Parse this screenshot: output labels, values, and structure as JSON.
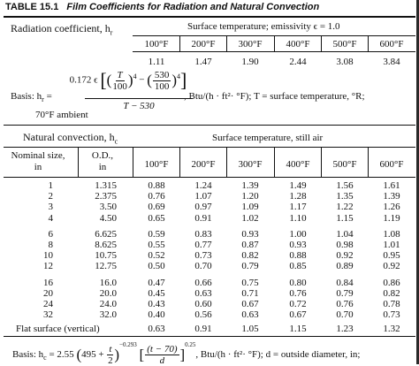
{
  "title": {
    "label": "TABLE 15.1",
    "text": "Film Coefficients for Radiation and Natural Convection"
  },
  "radiation": {
    "coef_label": "Radiation coefficient, h",
    "coef_sub": "r",
    "surface_header": "Surface temperature; emissivity ϵ = 1.0",
    "temps": [
      "100°F",
      "200°F",
      "300°F",
      "400°F",
      "500°F",
      "600°F"
    ],
    "values": [
      "1.11",
      "1.47",
      "1.90",
      "2.44",
      "3.08",
      "3.84"
    ],
    "basis_label": "Basis: h",
    "basis_sub": "r",
    "eq_coef": "0.172 ϵ",
    "eq_T": "T",
    "eq_100": "100",
    "eq_530": "530",
    "eq_pow": "4",
    "eq_denom": "T − 530",
    "basis_tail": ", Btu/(h · ft²· °F); T = surface temperature, °R;",
    "ambient": "70°F ambient"
  },
  "convection": {
    "label": "Natural convection, h",
    "label_sub": "c",
    "surface_header": "Surface temperature, still air",
    "col_nominal": [
      "Nominal size,",
      "in"
    ],
    "col_od": [
      "O.D.,",
      "in"
    ],
    "temps": [
      "100°F",
      "200°F",
      "300°F",
      "400°F",
      "500°F",
      "600°F"
    ],
    "groups": [
      [
        {
          "nominal": "1",
          "od": "1.315",
          "v": [
            "0.88",
            "1.24",
            "1.39",
            "1.49",
            "1.56",
            "1.61"
          ]
        },
        {
          "nominal": "2",
          "od": "2.375",
          "v": [
            "0.76",
            "1.07",
            "1.20",
            "1.28",
            "1.35",
            "1.39"
          ]
        },
        {
          "nominal": "3",
          "od": "3.50",
          "v": [
            "0.69",
            "0.97",
            "1.09",
            "1.17",
            "1.22",
            "1.26"
          ]
        },
        {
          "nominal": "4",
          "od": "4.50",
          "v": [
            "0.65",
            "0.91",
            "1.02",
            "1.10",
            "1.15",
            "1.19"
          ]
        }
      ],
      [
        {
          "nominal": "6",
          "od": "6.625",
          "v": [
            "0.59",
            "0.83",
            "0.93",
            "1.00",
            "1.04",
            "1.08"
          ]
        },
        {
          "nominal": "8",
          "od": "8.625",
          "v": [
            "0.55",
            "0.77",
            "0.87",
            "0.93",
            "0.98",
            "1.01"
          ]
        },
        {
          "nominal": "10",
          "od": "10.75",
          "v": [
            "0.52",
            "0.73",
            "0.82",
            "0.88",
            "0.92",
            "0.95"
          ]
        },
        {
          "nominal": "12",
          "od": "12.75",
          "v": [
            "0.50",
            "0.70",
            "0.79",
            "0.85",
            "0.89",
            "0.92"
          ]
        }
      ],
      [
        {
          "nominal": "16",
          "od": "16.0",
          "v": [
            "0.47",
            "0.66",
            "0.75",
            "0.80",
            "0.84",
            "0.86"
          ]
        },
        {
          "nominal": "20",
          "od": "20.0",
          "v": [
            "0.45",
            "0.63",
            "0.71",
            "0.76",
            "0.79",
            "0.82"
          ]
        },
        {
          "nominal": "24",
          "od": "24.0",
          "v": [
            "0.43",
            "0.60",
            "0.67",
            "0.72",
            "0.76",
            "0.78"
          ]
        },
        {
          "nominal": "32",
          "od": "32.0",
          "v": [
            "0.40",
            "0.56",
            "0.63",
            "0.67",
            "0.70",
            "0.73"
          ]
        }
      ]
    ],
    "flat_label": "Flat surface (vertical)",
    "flat_values": [
      "0.63",
      "0.91",
      "1.05",
      "1.15",
      "1.23",
      "1.32"
    ],
    "basis_label": "Basis: h",
    "basis_sub": "c",
    "basis_eq_left": "= 2.55",
    "basis_eq_inner": "495 +",
    "basis_t": "t",
    "basis_2": "2",
    "basis_exp1": "−0.293",
    "basis_tm70": "(t − 70)",
    "basis_d": "d",
    "basis_exp2": "0.25",
    "basis_tail": ", Btu/(h · ft²· °F); d = outside diameter, in;"
  }
}
